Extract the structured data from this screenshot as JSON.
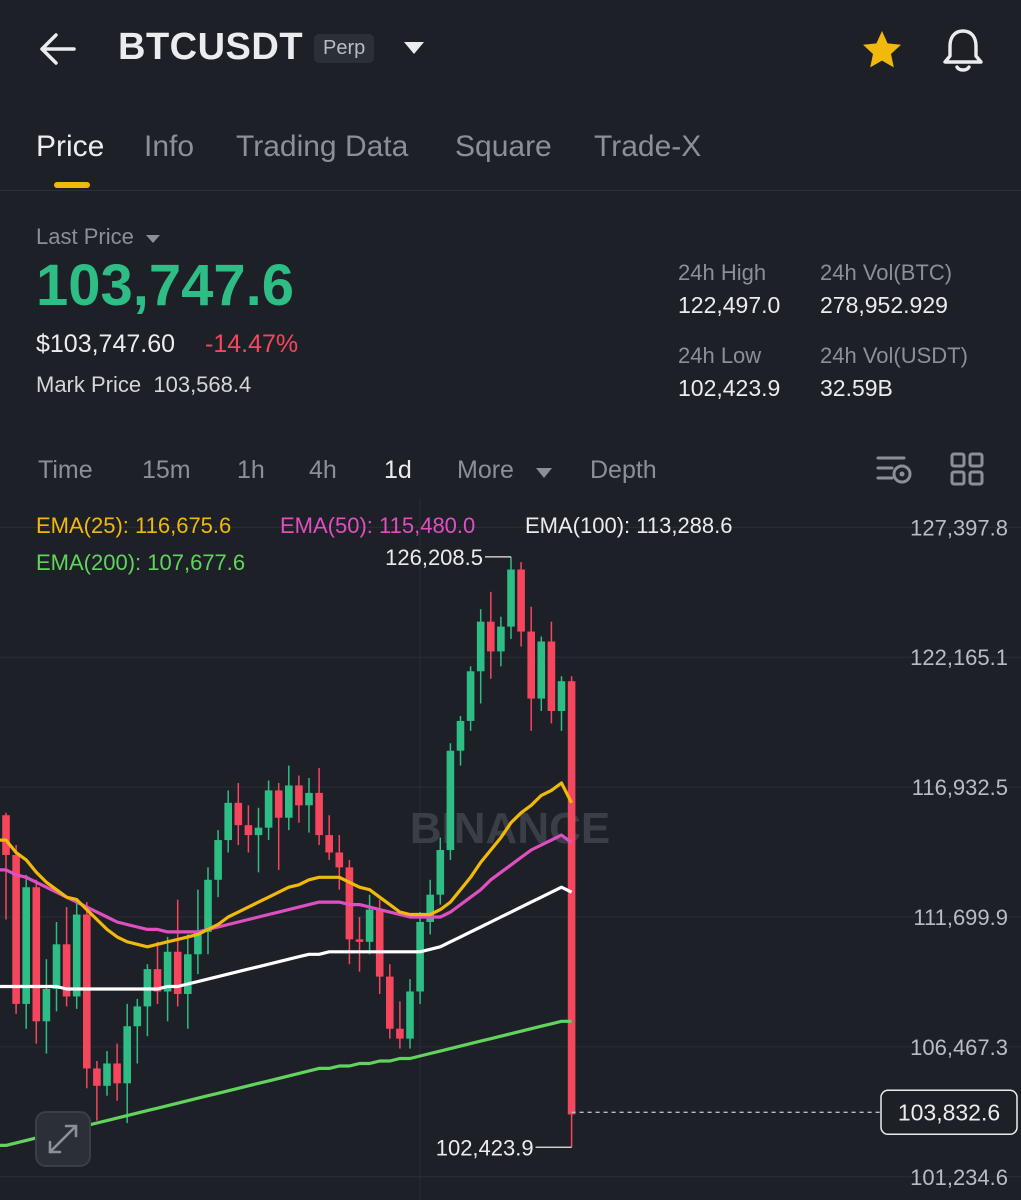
{
  "header": {
    "back_icon": "arrow-left-icon",
    "symbol": "BTCUSDT",
    "contract_badge": "Perp",
    "dropdown_icon": "triangle-down-icon",
    "favorite_icon": "star-icon",
    "alert_icon": "bell-icon",
    "accent": "#f0b90b"
  },
  "tabs": [
    {
      "label": "Price",
      "active": true
    },
    {
      "label": "Info"
    },
    {
      "label": "Trading Data"
    },
    {
      "label": "Square"
    },
    {
      "label": "Trade-X"
    }
  ],
  "price": {
    "last_label": "Last Price",
    "last": "103,747.6",
    "usd": "$103,747.60",
    "change": "-14.47%",
    "mark_label": "Mark Price",
    "mark": "103,568.4",
    "high_label": "24h High",
    "high": "122,497.0",
    "low_label": "24h Low",
    "low": "102,423.9",
    "volbtc_label": "24h Vol(BTC)",
    "volbtc": "278,952.929",
    "volusdt_label": "24h Vol(USDT)",
    "volusdt": "32.59B"
  },
  "intervals": {
    "time": "Time",
    "m15": "15m",
    "h1": "1h",
    "h4": "4h",
    "d1": "1d",
    "more": "More",
    "depth": "Depth",
    "settings_icon": "chart-settings-icon",
    "layout_icon": "grid-layout-icon"
  },
  "emas": {
    "e25": "EMA(25): 116,675.6",
    "e50": "EMA(50): 115,480.0",
    "e100": "EMA(100): 113,288.6",
    "e200": "EMA(200): 107,677.6"
  },
  "chart_data": {
    "type": "candlestick",
    "interval": "1d",
    "y_ticks": [
      "127,397.8",
      "122,165.1",
      "116,932.5",
      "111,699.9",
      "106,467.3",
      "101,234.6"
    ],
    "high_marker": "126,208.5",
    "low_marker": "102,423.9",
    "current_price_label": "103,832.6",
    "watermark": "BINANCE",
    "expand_icon": "expand-icon",
    "colors": {
      "up": "#2ebd85",
      "down": "#f6465d",
      "ema25": "#f0b90b",
      "ema50": "#e04fc1",
      "ema100": "#ffffff",
      "ema200": "#62d35c"
    },
    "ylim": [
      100300,
      128500
    ],
    "candles": [
      [
        115800,
        115900,
        111600,
        114200
      ],
      [
        114200,
        114600,
        107800,
        108200
      ],
      [
        108200,
        113400,
        107200,
        112900
      ],
      [
        112900,
        113200,
        106600,
        107500
      ],
      [
        107500,
        110000,
        106200,
        108800
      ],
      [
        108800,
        111500,
        107900,
        110600
      ],
      [
        110600,
        112100,
        108100,
        108500
      ],
      [
        108500,
        112400,
        108000,
        111800
      ],
      [
        111800,
        112300,
        104800,
        105600
      ],
      [
        105600,
        105900,
        103500,
        104900
      ],
      [
        104900,
        106300,
        104500,
        105800
      ],
      [
        105800,
        106600,
        104300,
        105000
      ],
      [
        105000,
        108200,
        103400,
        107300
      ],
      [
        107300,
        108400,
        105800,
        108100
      ],
      [
        108100,
        109800,
        106900,
        109600
      ],
      [
        109600,
        110700,
        108200,
        108700
      ],
      [
        108700,
        110900,
        107500,
        110300
      ],
      [
        110300,
        112400,
        108100,
        108600
      ],
      [
        108600,
        111000,
        107200,
        110200
      ],
      [
        110200,
        112800,
        109400,
        111100
      ],
      [
        111100,
        113700,
        110200,
        113200
      ],
      [
        113200,
        115200,
        112500,
        114800
      ],
      [
        114800,
        116800,
        114300,
        116300
      ],
      [
        116300,
        117100,
        114600,
        115400
      ],
      [
        115400,
        116200,
        114300,
        115000
      ],
      [
        115000,
        116100,
        113500,
        115300
      ],
      [
        115300,
        117200,
        114800,
        116800
      ],
      [
        116800,
        117100,
        113600,
        115700
      ],
      [
        115700,
        117800,
        115200,
        117000
      ],
      [
        117000,
        117400,
        115500,
        116200
      ],
      [
        116200,
        117300,
        115100,
        116700
      ],
      [
        116700,
        117700,
        114600,
        115000
      ],
      [
        115000,
        115800,
        114000,
        114300
      ],
      [
        114300,
        115000,
        112800,
        113700
      ],
      [
        113700,
        114000,
        109800,
        110800
      ],
      [
        110800,
        111700,
        109500,
        110700
      ],
      [
        110700,
        112600,
        110200,
        112000
      ],
      [
        112000,
        112400,
        108600,
        109300
      ],
      [
        109300,
        109800,
        106800,
        107200
      ],
      [
        107200,
        108300,
        106400,
        106800
      ],
      [
        106800,
        109200,
        106400,
        108700
      ],
      [
        108700,
        111900,
        108200,
        111500
      ],
      [
        111500,
        113200,
        111000,
        112600
      ],
      [
        112600,
        114900,
        112200,
        114400
      ],
      [
        114400,
        118700,
        114000,
        118400
      ],
      [
        118400,
        119800,
        117800,
        119600
      ],
      [
        119600,
        121800,
        119200,
        121600
      ],
      [
        121600,
        124100,
        120300,
        123600
      ],
      [
        123600,
        124800,
        121300,
        122400
      ],
      [
        122400,
        123800,
        121800,
        123400
      ],
      [
        123400,
        126208.5,
        122900,
        125700
      ],
      [
        125700,
        126000,
        122600,
        123200
      ],
      [
        123200,
        124200,
        119200,
        120500
      ],
      [
        120500,
        123000,
        120000,
        122800
      ],
      [
        122800,
        123600,
        119500,
        120000
      ],
      [
        120000,
        121400,
        119200,
        121200
      ],
      [
        121200,
        121400,
        102423.9,
        103747.6
      ]
    ],
    "ema25": [
      114800,
      114300,
      114000,
      113500,
      113100,
      112800,
      112500,
      112400,
      112000,
      111600,
      111200,
      110900,
      110700,
      110600,
      110500,
      110600,
      110700,
      110800,
      110900,
      111000,
      111200,
      111400,
      111700,
      111900,
      112100,
      112300,
      112500,
      112700,
      112900,
      113000,
      113200,
      113300,
      113300,
      113300,
      113100,
      112900,
      112800,
      112500,
      112200,
      111900,
      111800,
      111800,
      111800,
      112000,
      112300,
      112800,
      113300,
      113900,
      114400,
      114900,
      115500,
      115900,
      116200,
      116600,
      116800,
      117100,
      116300
    ],
    "ema50": [
      113600,
      113400,
      113300,
      113100,
      112900,
      112700,
      112500,
      112300,
      112100,
      111900,
      111700,
      111500,
      111400,
      111300,
      111200,
      111200,
      111100,
      111100,
      111100,
      111100,
      111200,
      111300,
      111400,
      111500,
      111600,
      111700,
      111800,
      111900,
      112000,
      112100,
      112200,
      112300,
      112300,
      112300,
      112200,
      112200,
      112100,
      112000,
      111900,
      111800,
      111700,
      111700,
      111700,
      111700,
      111900,
      112200,
      112500,
      112800,
      113200,
      113500,
      113800,
      114100,
      114400,
      114600,
      114800,
      115000,
      114700
    ],
    "ema100": [
      108900,
      108900,
      108900,
      108900,
      108900,
      108900,
      108800,
      108800,
      108800,
      108800,
      108800,
      108800,
      108800,
      108800,
      108800,
      108800,
      108900,
      108900,
      109000,
      109100,
      109200,
      109300,
      109400,
      109500,
      109600,
      109700,
      109800,
      109900,
      110000,
      110100,
      110200,
      110200,
      110300,
      110300,
      110300,
      110300,
      110300,
      110300,
      110300,
      110300,
      110300,
      110300,
      110400,
      110500,
      110700,
      110900,
      111100,
      111300,
      111500,
      111700,
      111900,
      112100,
      112300,
      112500,
      112700,
      112900,
      112700
    ],
    "ema200": [
      102500,
      102600,
      102700,
      102800,
      102900,
      103000,
      103100,
      103200,
      103300,
      103400,
      103500,
      103600,
      103700,
      103800,
      103900,
      104000,
      104100,
      104200,
      104300,
      104400,
      104500,
      104600,
      104700,
      104800,
      104900,
      105000,
      105100,
      105200,
      105300,
      105400,
      105500,
      105600,
      105600,
      105700,
      105700,
      105800,
      105800,
      105900,
      105900,
      106000,
      106000,
      106100,
      106200,
      106300,
      106400,
      106500,
      106600,
      106700,
      106800,
      106900,
      107000,
      107100,
      107200,
      107300,
      107400,
      107500,
      107500
    ]
  }
}
